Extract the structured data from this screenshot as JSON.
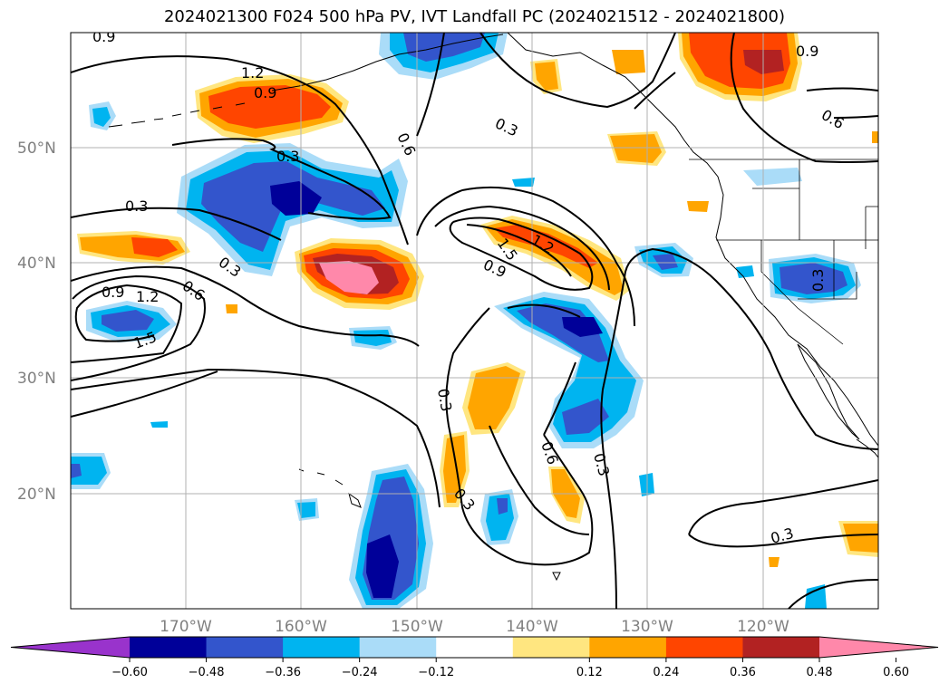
{
  "title": "2024021300 F024 500 hPa PV, IVT Landfall PC (2024021512 - 2024021800)",
  "map": {
    "lat_labels": [
      "50°N",
      "40°N",
      "30°N",
      "20°N"
    ],
    "lon_labels": [
      "170°W",
      "160°W",
      "150°W",
      "140°W",
      "130°W",
      "120°W"
    ],
    "contour_labels": [
      "0.9",
      "1.2",
      "0.9",
      "0.3",
      "0.6",
      "0.3",
      "0.9",
      "0.6",
      "0.3",
      "0.3",
      "0.9",
      "1.2",
      "1.5",
      "0.6",
      "0.3",
      "1.5",
      "1.2",
      "0.9",
      "0.3",
      "0.6",
      "0.3",
      "0.3",
      "0.3"
    ]
  },
  "colorbar": {
    "ticks": [
      "−0.60",
      "−0.48",
      "−0.36",
      "−0.24",
      "−0.12",
      "0.12",
      "0.24",
      "0.36",
      "0.48",
      "0.60"
    ],
    "colors": [
      "#9933cc",
      "#000099",
      "#3355cc",
      "#00b4f0",
      "#aadcf8",
      "#ffffff",
      "#ffe680",
      "#ffa500",
      "#ff4500",
      "#b22222",
      "#ff88aa"
    ]
  },
  "colors": {
    "deep_neg": "#000099",
    "neg": "#3355cc",
    "mid_neg": "#00b4f0",
    "light_neg": "#aadcf8",
    "light_pos": "#ffe680",
    "pos": "#ffa500",
    "strong_pos": "#ff4500",
    "very_strong_pos": "#b22222",
    "max_pos": "#ff88aa"
  }
}
